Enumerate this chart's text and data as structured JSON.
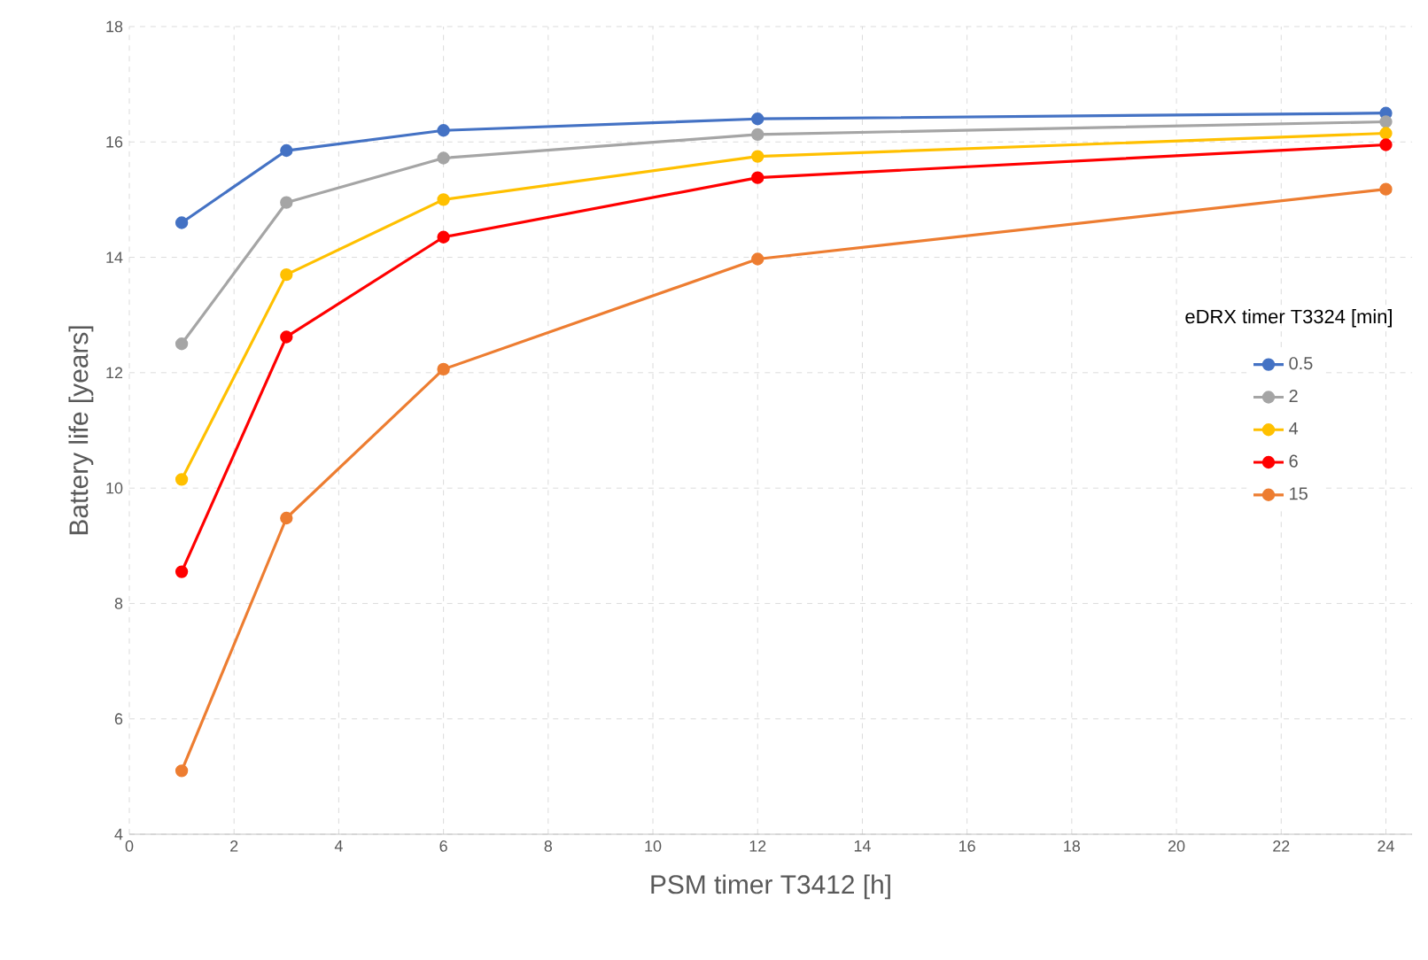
{
  "chart_data": {
    "type": "line",
    "xlabel": "PSM timer T3412 [h]",
    "ylabel": "Battery life [years]",
    "legend_title": "eDRX timer T3324 [min]",
    "legend": "right",
    "grid": true,
    "marker": "circle",
    "line_style": "solid",
    "xlim": [
      0,
      24.5
    ],
    "ylim": [
      4,
      18
    ],
    "xticks": [
      0,
      2,
      4,
      6,
      8,
      10,
      12,
      14,
      16,
      18,
      20,
      22,
      24
    ],
    "yticks": [
      4,
      6,
      8,
      10,
      12,
      14,
      16,
      18
    ],
    "x": [
      1,
      3,
      6,
      12,
      24
    ],
    "series": [
      {
        "name": "0.5",
        "color": "#4472c4",
        "values": [
          14.6,
          15.85,
          16.2,
          16.4,
          16.5
        ]
      },
      {
        "name": "2",
        "color": "#a5a5a5",
        "values": [
          12.5,
          14.95,
          15.72,
          16.13,
          16.35
        ]
      },
      {
        "name": "4",
        "color": "#ffc000",
        "values": [
          10.15,
          13.7,
          15.0,
          15.75,
          16.15
        ]
      },
      {
        "name": "6",
        "color": "#ff0000",
        "values": [
          8.55,
          12.62,
          14.35,
          15.38,
          15.95
        ]
      },
      {
        "name": "15",
        "color": "#ed7d31",
        "values": [
          5.1,
          9.48,
          12.06,
          13.97,
          15.18
        ]
      }
    ]
  }
}
